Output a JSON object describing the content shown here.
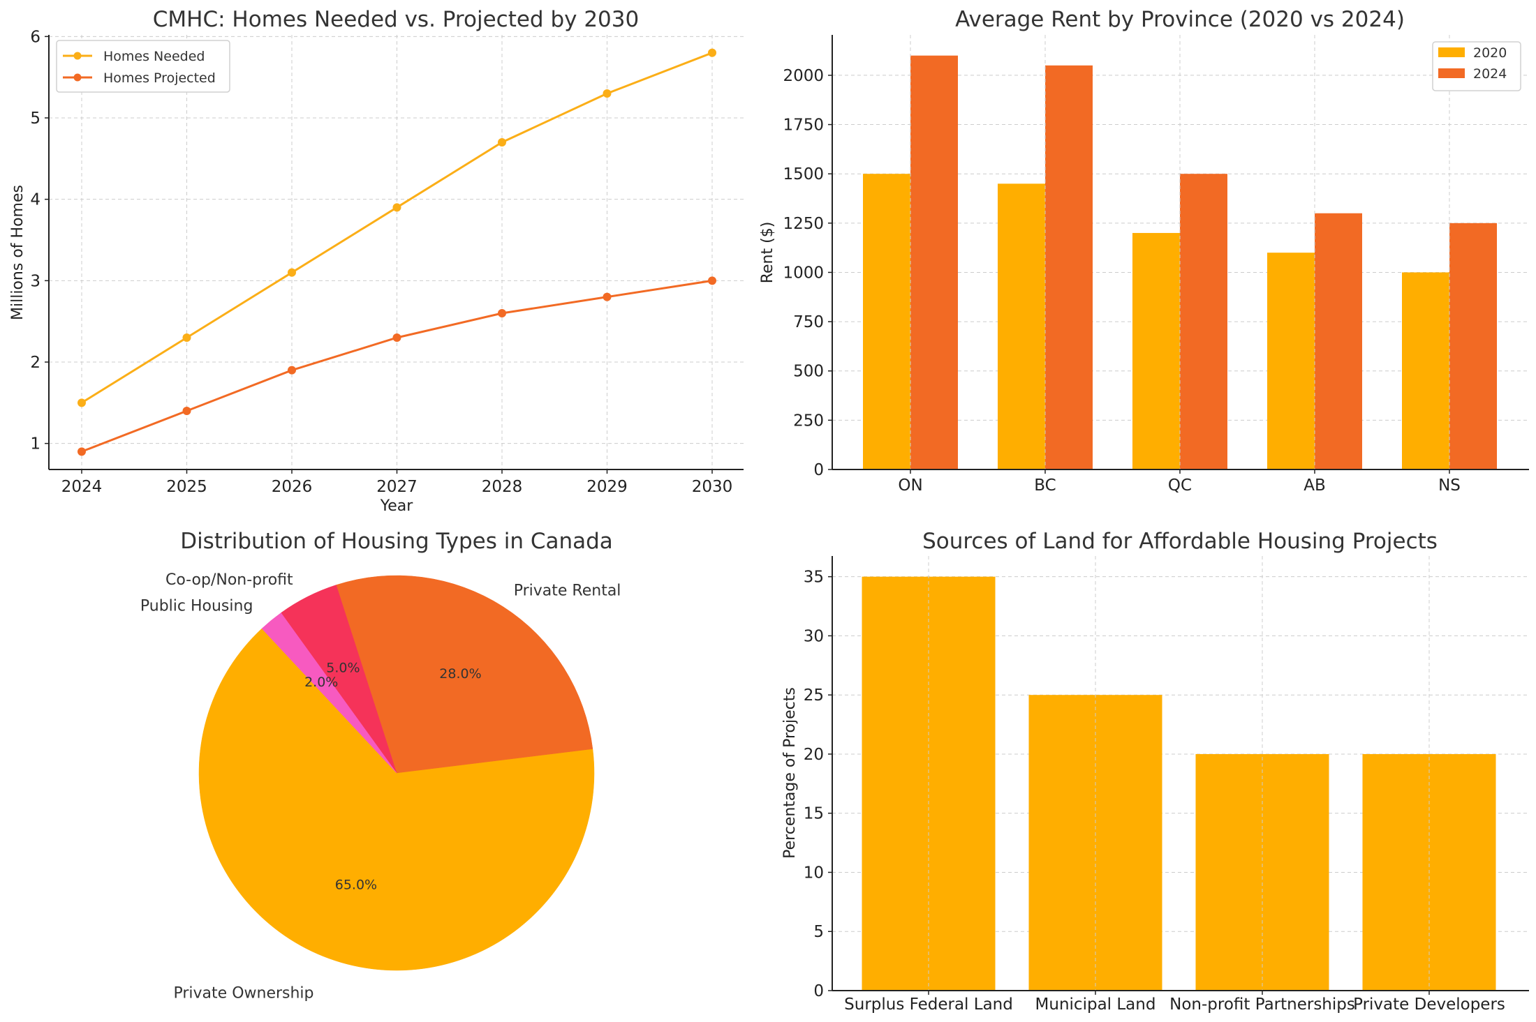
{
  "chart_data": [
    {
      "type": "line",
      "title": "CMHC: Homes Needed vs. Projected by 2030",
      "xlabel": "Year",
      "ylabel": "Millions of Homes",
      "x": [
        2024,
        2025,
        2026,
        2027,
        2028,
        2029,
        2030
      ],
      "xticks": [
        "2024",
        "2025",
        "2026",
        "2027",
        "2028",
        "2029",
        "2030"
      ],
      "yticks": [
        1,
        2,
        3,
        4,
        5,
        6
      ],
      "ylim": [
        0.68,
        6.02
      ],
      "grid": true,
      "legend_position": "top-left",
      "series": [
        {
          "name": "Homes Needed",
          "color": "#FBAE17",
          "values": [
            1.5,
            2.3,
            3.1,
            3.9,
            4.7,
            5.3,
            5.8
          ]
        },
        {
          "name": "Homes Projected",
          "color": "#F26A24",
          "values": [
            0.9,
            1.4,
            1.9,
            2.3,
            2.6,
            2.8,
            3.0
          ]
        }
      ]
    },
    {
      "type": "bar",
      "title": "Average Rent by Province (2020 vs 2024)",
      "xlabel": "",
      "ylabel": "Rent ($)",
      "categories": [
        "ON",
        "BC",
        "QC",
        "AB",
        "NS"
      ],
      "yticks": [
        0,
        250,
        500,
        750,
        1000,
        1250,
        1500,
        1750,
        2000
      ],
      "ylim": [
        0,
        2205
      ],
      "grid": true,
      "legend_position": "top-right",
      "series": [
        {
          "name": "2020",
          "color": "#FFAE00",
          "values": [
            1500,
            1450,
            1200,
            1100,
            1000
          ]
        },
        {
          "name": "2024",
          "color": "#F26A24",
          "values": [
            2100,
            2050,
            1500,
            1300,
            1250
          ]
        }
      ]
    },
    {
      "type": "pie",
      "title": "Distribution of Housing Types in Canada",
      "slices": [
        {
          "label": "Private Ownership",
          "value": 65.0,
          "pct_label": "65.0%",
          "color": "#FFAE00"
        },
        {
          "label": "Private Rental",
          "value": 28.0,
          "pct_label": "28.0%",
          "color": "#F26A24"
        },
        {
          "label": "Co-op/Non-profit",
          "value": 5.0,
          "pct_label": "5.0%",
          "color": "#F53359"
        },
        {
          "label": "Public Housing",
          "value": 2.0,
          "pct_label": "2.0%",
          "color": "#F75AC0"
        }
      ]
    },
    {
      "type": "bar",
      "title": "Sources of Land for Affordable Housing Projects",
      "xlabel": "",
      "ylabel": "Percentage of Projects",
      "categories": [
        "Surplus Federal Land",
        "Municipal Land",
        "Non-profit Partnerships",
        "Private Developers"
      ],
      "values": [
        35,
        25,
        20,
        20
      ],
      "color": "#FFAE00",
      "yticks": [
        0,
        5,
        10,
        15,
        20,
        25,
        30,
        35
      ],
      "ylim": [
        0,
        36.75
      ],
      "grid": true
    }
  ]
}
